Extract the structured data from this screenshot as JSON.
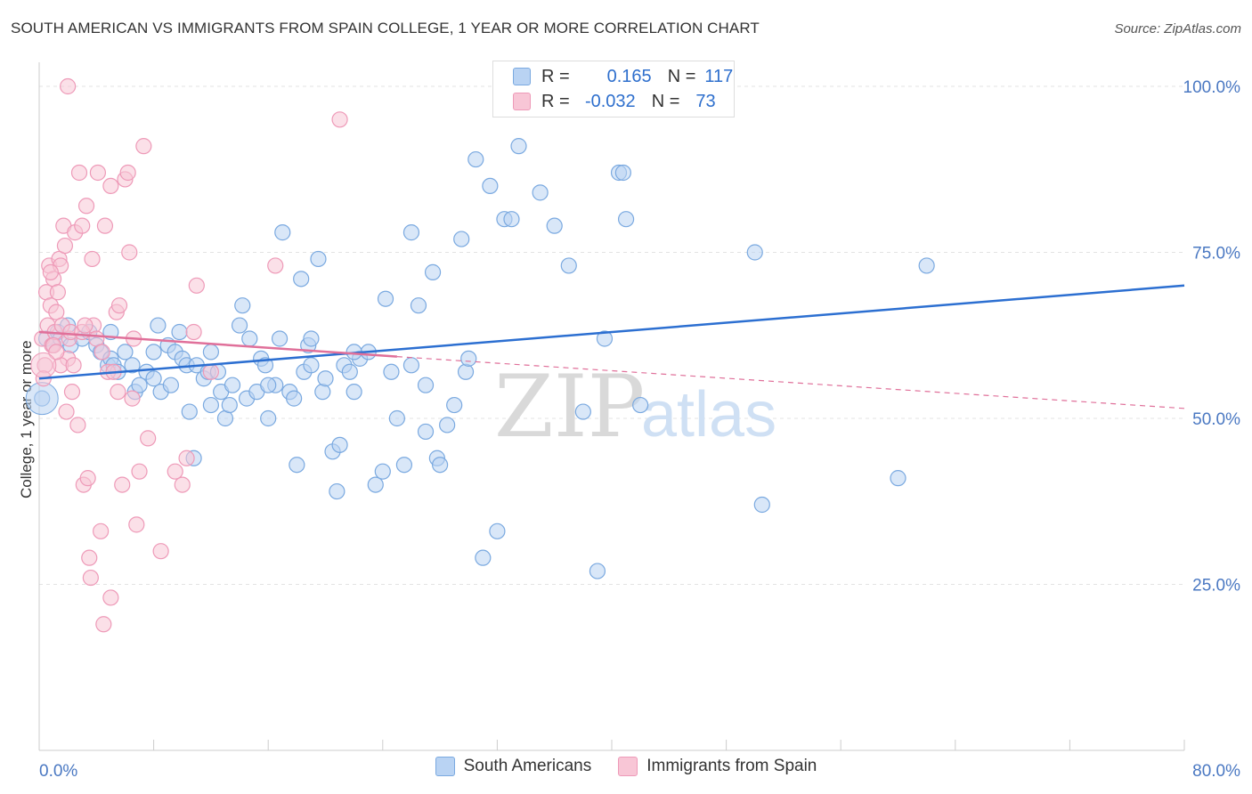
{
  "title": "SOUTH AMERICAN VS IMMIGRANTS FROM SPAIN COLLEGE, 1 YEAR OR MORE CORRELATION CHART",
  "source": "Source: ZipAtlas.com",
  "watermark": {
    "zip": "ZIP",
    "atlas": "atlas"
  },
  "colors": {
    "blue": "#7aa9e0",
    "blue_fill": "#b9d3f3",
    "pink": "#ee9ab8",
    "pink_fill": "#f8c6d6",
    "blue_line": "#2c6fd1",
    "pink_line": "#e0709a",
    "tick": "#4a78c2"
  },
  "legend_top": [
    {
      "r_label": "R =",
      "r_value": "0.165",
      "n_label": "N =",
      "n_value": "117"
    },
    {
      "r_label": "R =",
      "r_value": "-0.032",
      "n_label": "N =",
      "n_value": "73"
    }
  ],
  "chart_data": {
    "type": "scatter",
    "title": "SOUTH AMERICAN VS IMMIGRANTS FROM SPAIN COLLEGE, 1 YEAR OR MORE CORRELATION CHART",
    "xlabel": "",
    "ylabel": "College, 1 year or more",
    "xlim": [
      0,
      80
    ],
    "ylim": [
      0,
      100
    ],
    "x_tick_labels": [
      "0.0%",
      "80.0%"
    ],
    "y_tick_labels": [
      "100.0%",
      "75.0%",
      "50.0%",
      "25.0%"
    ],
    "y_ticks": [
      100,
      75,
      50,
      25
    ],
    "grid": true,
    "legend_placement": "bottom",
    "series": [
      {
        "name": "South Americans",
        "color": "#7aa9e0",
        "trend": {
          "x": [
            0,
            80
          ],
          "y": [
            56,
            70
          ]
        },
        "points": [
          [
            0.2,
            53
          ],
          [
            0.5,
            62
          ],
          [
            1,
            61
          ],
          [
            1.3,
            63
          ],
          [
            1.5,
            62
          ],
          [
            2,
            64
          ],
          [
            2.2,
            61
          ],
          [
            3,
            62
          ],
          [
            3.5,
            63
          ],
          [
            4,
            61
          ],
          [
            4.3,
            60
          ],
          [
            4.8,
            58
          ],
          [
            5,
            59
          ],
          [
            5.2,
            58
          ],
          [
            5.5,
            57
          ],
          [
            6,
            60
          ],
          [
            6.5,
            58
          ],
          [
            6.7,
            54
          ],
          [
            7,
            55
          ],
          [
            7.5,
            57
          ],
          [
            8,
            60
          ],
          [
            8.3,
            64
          ],
          [
            8.5,
            54
          ],
          [
            9,
            61
          ],
          [
            9.2,
            55
          ],
          [
            9.5,
            60
          ],
          [
            9.8,
            63
          ],
          [
            10,
            59
          ],
          [
            10.3,
            58
          ],
          [
            10.5,
            51
          ],
          [
            10.8,
            44
          ],
          [
            11,
            58
          ],
          [
            11.5,
            56
          ],
          [
            11.8,
            57
          ],
          [
            12,
            52
          ],
          [
            12.5,
            57
          ],
          [
            12.7,
            54
          ],
          [
            13,
            50
          ],
          [
            13.3,
            52
          ],
          [
            13.5,
            55
          ],
          [
            14,
            64
          ],
          [
            14.2,
            67
          ],
          [
            14.5,
            53
          ],
          [
            14.7,
            62
          ],
          [
            15.2,
            54
          ],
          [
            15.5,
            59
          ],
          [
            15.8,
            58
          ],
          [
            16,
            50
          ],
          [
            16.5,
            55
          ],
          [
            16.8,
            62
          ],
          [
            17,
            78
          ],
          [
            17.5,
            54
          ],
          [
            17.8,
            53
          ],
          [
            18,
            43
          ],
          [
            18.3,
            71
          ],
          [
            18.5,
            57
          ],
          [
            18.8,
            61
          ],
          [
            19,
            58
          ],
          [
            19.5,
            74
          ],
          [
            19.8,
            54
          ],
          [
            20,
            56
          ],
          [
            20.5,
            45
          ],
          [
            20.8,
            39
          ],
          [
            21,
            46
          ],
          [
            21.3,
            58
          ],
          [
            21.7,
            57
          ],
          [
            22,
            54
          ],
          [
            22.4,
            59
          ],
          [
            23,
            60
          ],
          [
            23.5,
            40
          ],
          [
            24,
            42
          ],
          [
            24.2,
            68
          ],
          [
            24.6,
            57
          ],
          [
            25,
            50
          ],
          [
            25.5,
            43
          ],
          [
            26,
            78
          ],
          [
            26.5,
            67
          ],
          [
            27,
            48
          ],
          [
            27.5,
            72
          ],
          [
            27.8,
            44
          ],
          [
            28,
            43
          ],
          [
            28.5,
            49
          ],
          [
            29,
            52
          ],
          [
            29.5,
            77
          ],
          [
            29.8,
            57
          ],
          [
            30,
            59
          ],
          [
            30.5,
            89
          ],
          [
            31,
            29
          ],
          [
            31.5,
            85
          ],
          [
            32,
            33
          ],
          [
            32.5,
            80
          ],
          [
            33,
            80
          ],
          [
            33.5,
            91
          ],
          [
            34,
            98
          ],
          [
            35,
            84
          ],
          [
            36,
            79
          ],
          [
            37,
            73
          ],
          [
            38,
            51
          ],
          [
            39,
            27
          ],
          [
            39.5,
            62
          ],
          [
            40,
            100
          ],
          [
            40.5,
            87
          ],
          [
            40.8,
            87
          ],
          [
            41,
            80
          ],
          [
            42,
            52
          ],
          [
            50,
            75
          ],
          [
            50.5,
            37
          ],
          [
            62,
            73
          ],
          [
            60,
            41
          ],
          [
            16,
            55
          ],
          [
            22,
            60
          ],
          [
            26,
            58
          ],
          [
            8,
            56
          ],
          [
            12,
            60
          ],
          [
            19,
            62
          ],
          [
            5,
            63
          ],
          [
            27,
            55
          ]
        ]
      },
      {
        "name": "Immigrants from Spain",
        "color": "#ee9ab8",
        "trend": {
          "x": [
            0,
            25
          ],
          "y": [
            63,
            59.3
          ]
        },
        "trend_dashed": {
          "x": [
            25,
            80
          ],
          "y": [
            59.3,
            51.5
          ]
        },
        "points": [
          [
            0.2,
            62
          ],
          [
            0.4,
            58
          ],
          [
            0.5,
            69
          ],
          [
            0.6,
            64
          ],
          [
            0.7,
            73
          ],
          [
            0.8,
            67
          ],
          [
            0.9,
            61
          ],
          [
            1,
            71
          ],
          [
            1.1,
            63
          ],
          [
            1.2,
            66
          ],
          [
            1.3,
            69
          ],
          [
            1.4,
            74
          ],
          [
            1.5,
            73
          ],
          [
            1.6,
            64
          ],
          [
            1.7,
            79
          ],
          [
            1.8,
            76
          ],
          [
            1.9,
            51
          ],
          [
            2,
            59
          ],
          [
            2.1,
            62
          ],
          [
            2.2,
            63
          ],
          [
            2.3,
            54
          ],
          [
            2.5,
            78
          ],
          [
            2.7,
            49
          ],
          [
            2.8,
            87
          ],
          [
            3,
            79
          ],
          [
            3.1,
            40
          ],
          [
            3.3,
            82
          ],
          [
            3.4,
            41
          ],
          [
            3.5,
            29
          ],
          [
            3.6,
            26
          ],
          [
            3.7,
            74
          ],
          [
            3.8,
            64
          ],
          [
            4,
            62
          ],
          [
            4.1,
            87
          ],
          [
            4.3,
            33
          ],
          [
            4.5,
            19
          ],
          [
            4.6,
            79
          ],
          [
            4.8,
            57
          ],
          [
            5,
            23
          ],
          [
            5,
            85
          ],
          [
            5.2,
            57
          ],
          [
            5.4,
            66
          ],
          [
            5.6,
            67
          ],
          [
            5.8,
            40
          ],
          [
            6,
            86
          ],
          [
            6.2,
            87
          ],
          [
            6.3,
            75
          ],
          [
            6.5,
            53
          ],
          [
            6.8,
            34
          ],
          [
            7,
            42
          ],
          [
            7.3,
            91
          ],
          [
            7.6,
            47
          ],
          [
            8.5,
            30
          ],
          [
            9.5,
            42
          ],
          [
            10,
            40
          ],
          [
            10.3,
            44
          ],
          [
            10.8,
            63
          ],
          [
            11,
            70
          ],
          [
            12,
            57
          ],
          [
            16.5,
            73
          ],
          [
            21,
            95
          ],
          [
            1,
            61
          ],
          [
            1.5,
            58
          ],
          [
            2,
            100
          ],
          [
            3,
            63
          ],
          [
            0.8,
            72
          ],
          [
            0.3,
            56
          ],
          [
            1.2,
            60
          ],
          [
            2.4,
            58
          ],
          [
            3.2,
            64
          ],
          [
            4.4,
            60
          ],
          [
            5.5,
            54
          ],
          [
            6.6,
            62
          ]
        ]
      }
    ]
  },
  "bottom_legend": [
    {
      "label": "South Americans"
    },
    {
      "label": "Immigrants from Spain"
    }
  ]
}
